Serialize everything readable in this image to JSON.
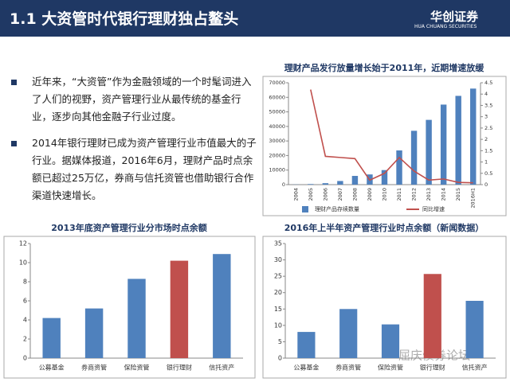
{
  "header": {
    "title": "1.1 大资管时代银行理财独占鳌头",
    "logo": "华创证券",
    "logo_sub": "HUA CHUANG SECURITIES"
  },
  "bullets": [
    "近年来，“大资管”作为金融领域的一个时髦词进入了人们的视野，资产管理行业从最传统的基金行业，逐步向其他金融子行业过度。",
    "2014年银行理财已成为资产管理行业市值最大的子行业。据媒体报道，2016年6月，理财产品时点余额已超过25万亿，券商与信托资管也借助银行合作渠道快速增长。"
  ],
  "watermark": "屈庆债券论坛",
  "chart_data": [
    {
      "type": "bar",
      "title": "理财产品发行放量增长始于2011年，近期增速放缓",
      "categories": [
        "2004",
        "2005",
        "2006",
        "2007",
        "2008",
        "2009",
        "2010",
        "2011",
        "2012",
        "2013",
        "2014",
        "2015",
        "2016H1"
      ],
      "series": [
        {
          "name": "理财产品存续数量",
          "color": "#4f81bd",
          "values": [
            100,
            400,
            1000,
            2500,
            6000,
            7000,
            10000,
            23500,
            37000,
            44500,
            55000,
            61000,
            66000
          ]
        },
        {
          "name": "同比增速",
          "color": "#c0504d",
          "type": "line",
          "axis": "y2",
          "values": [
            null,
            4.2,
            1.25,
            1.2,
            1.15,
            0.2,
            0.5,
            1.2,
            0.6,
            0.2,
            0.25,
            0.1,
            0.08
          ]
        }
      ],
      "ylim": [
        0,
        70000
      ],
      "yticks": [
        0,
        10000,
        20000,
        30000,
        40000,
        50000,
        60000,
        70000
      ],
      "y2lim": [
        0,
        4.5
      ],
      "y2ticks": [
        0,
        0.5,
        1,
        1.5,
        2,
        2.5,
        3,
        3.5,
        4,
        4.5
      ],
      "legend": "bottom"
    },
    {
      "type": "bar",
      "title": "2013年底资产管理行业分市场时点余额",
      "categories": [
        "公募基金",
        "券商资管",
        "保险资管",
        "银行理财",
        "信托资产"
      ],
      "values": [
        4.2,
        5.2,
        8.3,
        10.2,
        10.9
      ],
      "colors": [
        "#4f81bd",
        "#4f81bd",
        "#4f81bd",
        "#c0504d",
        "#4f81bd"
      ],
      "ylim": [
        0,
        12
      ],
      "yticks": [
        0,
        2,
        4,
        6,
        8,
        10,
        12
      ]
    },
    {
      "type": "bar",
      "title": "2016年上半年资产管理行业时点余额（新闻数据）",
      "categories": [
        "公募基金",
        "券商资管",
        "保险资管",
        "银行理财",
        "信托资产"
      ],
      "values": [
        8,
        15,
        10.3,
        25.7,
        17.5
      ],
      "colors": [
        "#4f81bd",
        "#4f81bd",
        "#4f81bd",
        "#c0504d",
        "#4f81bd"
      ],
      "ylim": [
        0,
        35
      ],
      "yticks": [
        0,
        5,
        10,
        15,
        20,
        25,
        30,
        35
      ]
    }
  ]
}
